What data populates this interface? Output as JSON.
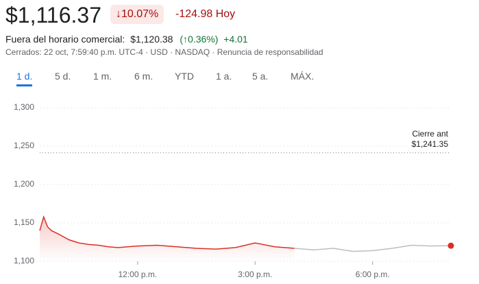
{
  "header": {
    "price": "$1,116.37",
    "change_pct": "↓10.07%",
    "change_abs": "-124.98 Hoy",
    "after_hours_label": "Fuera del horario comercial:",
    "after_hours_price": "$1,120.38",
    "after_hours_pct": "(↑0.36%)",
    "after_hours_abs": "+4.01",
    "status": "Cerrados: 22 oct, 7:59:40 p.m. UTC-4 · USD · NASDAQ · Renuncia de responsabilidad"
  },
  "tabs": [
    "1 d.",
    "5 d.",
    "1 m.",
    "6 m.",
    "YTD",
    "1 a.",
    "5 a.",
    "MÁX."
  ],
  "chart_data": {
    "type": "line",
    "x": [
      9.5,
      9.6,
      9.7,
      9.8,
      10,
      10.25,
      10.5,
      10.75,
      11,
      11.25,
      11.5,
      12,
      12.5,
      13,
      13.5,
      14,
      14.5,
      15,
      15.5,
      16,
      16.5,
      17,
      17.5,
      18,
      18.5,
      19,
      19.5,
      20
    ],
    "series": [
      {
        "color": "#d93025",
        "values": [
          1140,
          1158,
          1145,
          1140,
          1135,
          1128,
          1124,
          1122,
          1121,
          1119,
          1118,
          1120,
          1121,
          1119,
          1117,
          1116,
          1118,
          1124,
          1119,
          1117,
          null,
          null,
          null,
          null,
          null,
          null,
          null,
          null
        ]
      },
      {
        "color": "#bdbdbd",
        "values": [
          null,
          null,
          null,
          null,
          null,
          null,
          null,
          null,
          null,
          null,
          null,
          null,
          null,
          null,
          null,
          null,
          null,
          null,
          null,
          1117,
          1115,
          1117,
          1113,
          1114,
          1117,
          1121,
          1120,
          1120.38
        ]
      }
    ],
    "xlim": [
      9.5,
      20
    ],
    "xticks": [
      {
        "value": 12,
        "label": "12:00 p.m."
      },
      {
        "value": 15,
        "label": "3:00 p.m."
      },
      {
        "value": 18,
        "label": "6:00 p.m."
      }
    ],
    "ylim": [
      1100,
      1300
    ],
    "yticks": [
      {
        "value": 1100,
        "label": "1,100"
      },
      {
        "value": 1150,
        "label": "1,150"
      },
      {
        "value": 1200,
        "label": "1,200"
      },
      {
        "value": 1250,
        "label": "1,250"
      },
      {
        "value": 1300,
        "label": "1,300"
      }
    ],
    "reference_line": {
      "value": 1241.35,
      "label": "Cierre ant",
      "value_label": "$1,241.35"
    },
    "grid": true
  }
}
